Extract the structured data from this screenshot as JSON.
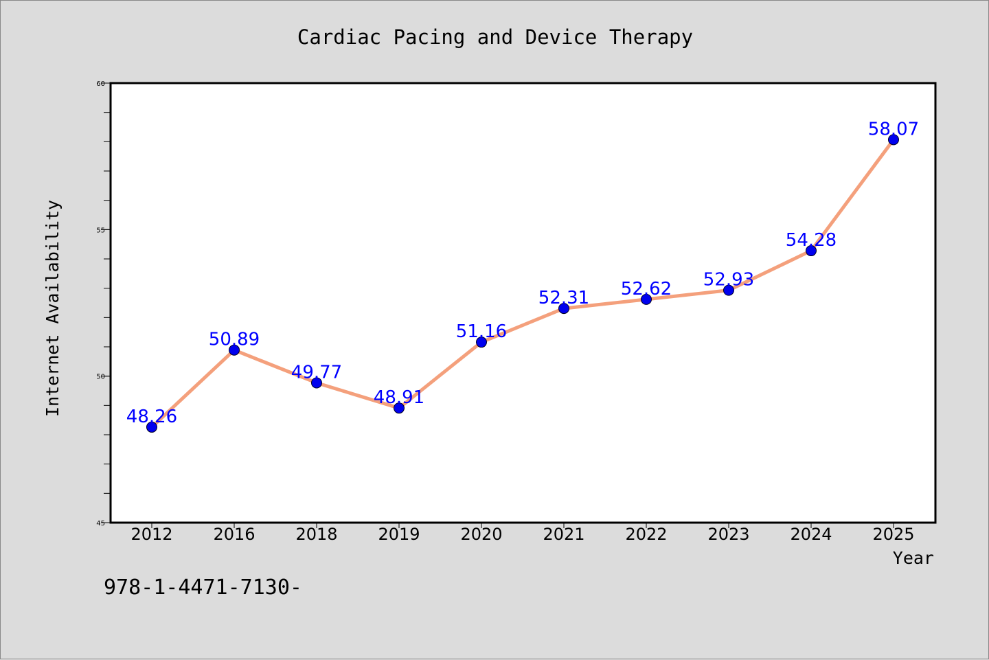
{
  "chart_data": {
    "type": "line",
    "title": "Cardiac Pacing and Device Therapy",
    "xlabel": "Year",
    "ylabel": "Internet Availability",
    "categories": [
      "2012",
      "2016",
      "2018",
      "2019",
      "2020",
      "2021",
      "2022",
      "2023",
      "2024",
      "2025"
    ],
    "series": [
      {
        "values": [
          48.26,
          50.89,
          49.77,
          48.91,
          51.16,
          52.31,
          52.62,
          52.93,
          54.28,
          58.07
        ],
        "labels": [
          "48.26",
          "50.89",
          "49.77",
          "48.91",
          "51.16",
          "52.31",
          "52.62",
          "52.93",
          "54.28",
          "58.07"
        ]
      }
    ],
    "ylim": [
      45,
      60
    ],
    "yticks": [
      "45",
      "50",
      "55",
      "60"
    ],
    "line_color": "#f4a07c",
    "marker_color": "#0000ee",
    "label_color": "#0000ff",
    "background": "#dcdcdc",
    "plot_background": "#ffffff",
    "grid": false
  },
  "footer": {
    "text": "978-1-4471-7130-"
  }
}
